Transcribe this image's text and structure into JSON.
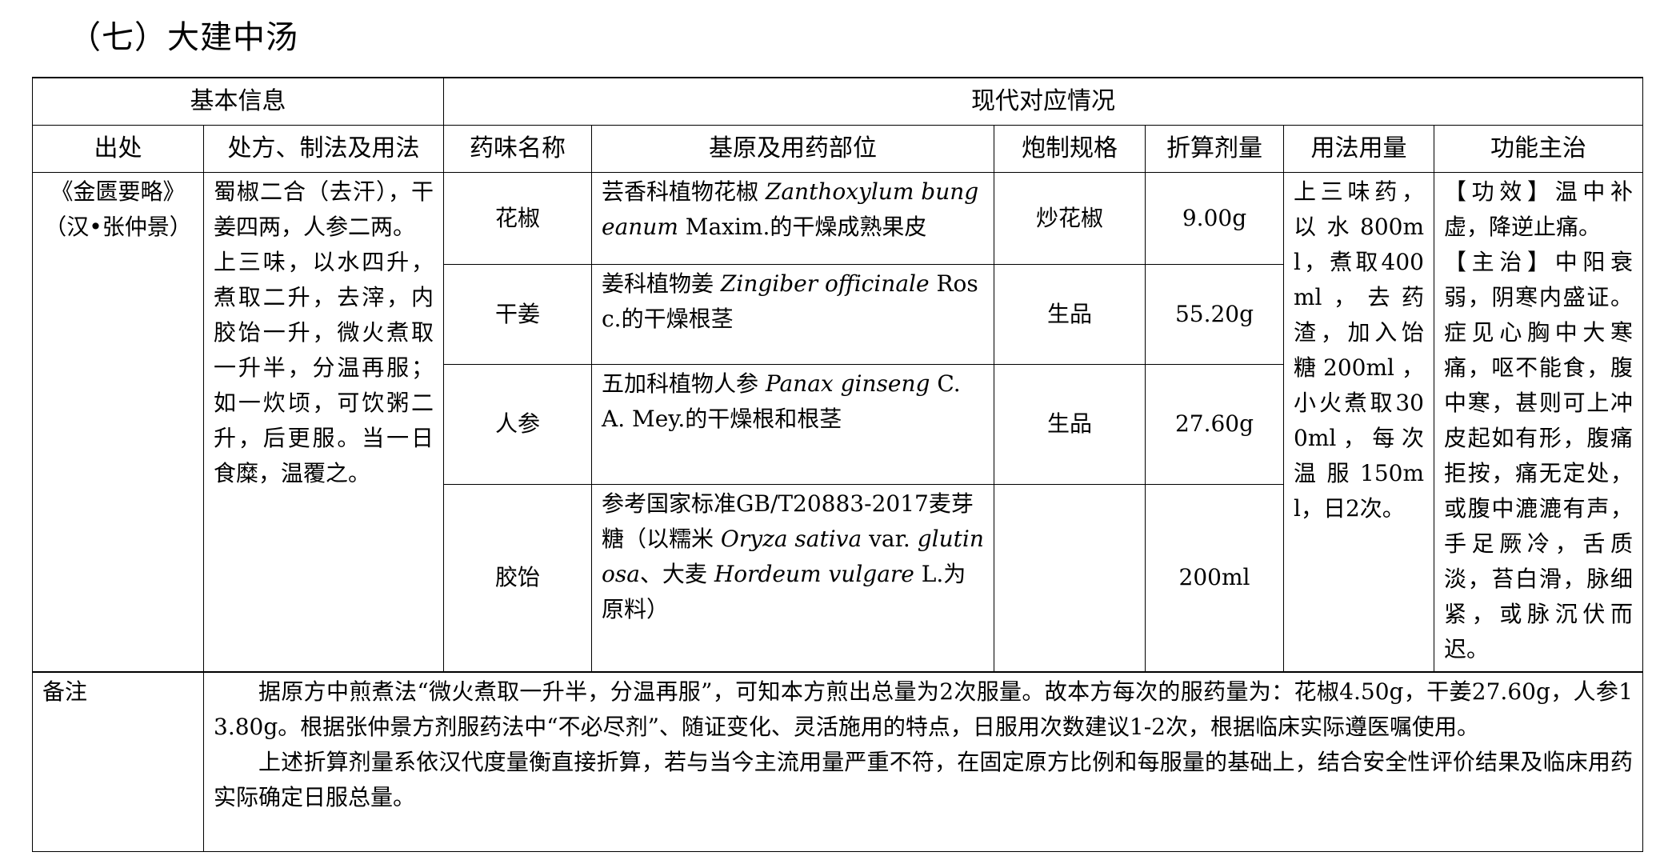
{
  "title": "（七）大建中汤",
  "header": {
    "basic": "基本信息",
    "modern": "现代对应情况",
    "cols": [
      "出处",
      "处方、制法及用法",
      "药味名称",
      "基原及用药部位",
      "炮制规格",
      "折算剂量",
      "用法用量",
      "功能主治"
    ]
  },
  "source": [
    "《金匮要略》",
    "（汉•张仲景）"
  ],
  "prescription": "蜀椒二合（去汗），干姜四两，人参二两。\n上三味，以水四升，煮取二升，去滓，内胶饴一升，微火煮取一升半，分温再服；如一炊顷，可饮粥二升，后更服。当一日食糜，温覆之。",
  "herbs": [
    {
      "name": "花椒",
      "origin_a": "芸香科植物花椒 ",
      "latin_a": "Zanthoxylum bungeanum",
      "origin_b": " Maxim.的干燥成熟果皮",
      "processing": "炒花椒",
      "dose": "9.00g"
    },
    {
      "name": "干姜",
      "origin_a": "姜科植物姜 ",
      "latin_a": "Zingiber officinale",
      "origin_b": " Rosc.的干燥根茎",
      "processing": "生品",
      "dose": "55.20g"
    },
    {
      "name": "人参",
      "origin_a": "五加科植物人参 ",
      "latin_a": "Panax ginseng",
      "origin_b": " C. A. Mey.的干燥根和根茎",
      "processing": "生品",
      "dose": "27.60g"
    },
    {
      "name": "胶饴",
      "origin_a": "参考国家标准GB/T20883-2017麦芽糖（以糯米 ",
      "latin_a": "Oryza sativa",
      "origin_b": " var. ",
      "latin_b": "glutinosa",
      "origin_c": "、大麦 ",
      "latin_c": "Hordeum vulgare",
      "origin_d": " L.为原料）",
      "processing": "",
      "dose": "200ml"
    }
  ],
  "usage": "上三味药，以水800ml，煮取400ml，去药渣，加入饴糖200ml，小火煮取300ml，每次温服150ml，日2次。",
  "function": "【功效】温中补虚，降逆止痛。\n【主治】中阳衰弱，阴寒内盛证。症见心胸中大寒痛，呕不能食，腹中寒，甚则可上冲皮起如有形，腹痛拒按，痛无定处，或腹中漉漉有声，手足厥冷，舌质淡，苔白滑，脉细紧，或脉沉伏而迟。",
  "note": {
    "label": "备注",
    "p1": "据原方中煎煮法“微火煮取一升半，分温再服”，可知本方煎出总量为2次服量。故本方每次的服药量为：花椒4.50g，干姜27.60g，人参13.80g。根据张仲景方剂服药法中“不必尽剂”、随证变化、灵活施用的特点，日服用次数建议1-2次，根据临床实际遵医嘱使用。",
    "p2": "上述折算剂量系依汉代度量衡直接折算，若与当今主流用量严重不符，在固定原方比例和每服量的基础上，结合安全性评价结果及临床用药实际确定日服总量。"
  }
}
